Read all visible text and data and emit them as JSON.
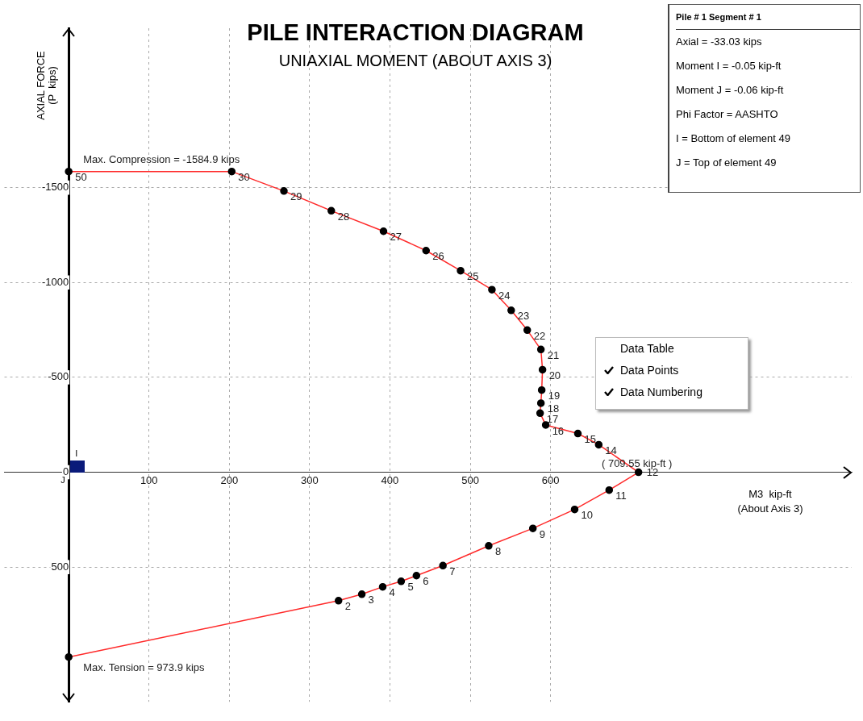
{
  "chart_data": {
    "type": "line",
    "title": "PILE INTERACTION DIAGRAM",
    "subtitle": "UNIAXIAL MOMENT (ABOUT AXIS 3)",
    "xlabel": "M3  kip-ft\n(About Axis 3)",
    "ylabel": "AXIAL FORCE\n(P  kips)",
    "x": [
      0,
      203,
      268,
      327,
      392,
      445,
      488,
      527,
      551,
      571,
      588,
      590,
      589,
      588,
      587,
      594,
      634,
      660,
      709.55,
      673,
      630,
      578,
      523,
      466,
      433,
      414,
      391,
      365,
      336,
      0
    ],
    "series": [
      {
        "color": "#ff2a2a",
        "values": [
          -1584.9,
          -1584.9,
          -1482,
          -1378,
          -1270,
          -1168,
          -1062,
          -962,
          -853,
          -749,
          -647,
          -540,
          -433,
          -364,
          -311,
          -249,
          -204,
          -145,
          0,
          94,
          196,
          296,
          388,
          492,
          545,
          575,
          604,
          643,
          677,
          973.9
        ]
      }
    ],
    "xlim": [
      -80,
      975
    ],
    "ylim": [
      1210,
      -2340
    ],
    "xticks": [
      100,
      200,
      300,
      400,
      500,
      600
    ],
    "yticks": [
      -1500,
      -1000,
      -500,
      0,
      500
    ],
    "grid": true,
    "marker": "circle",
    "line_style": "solid",
    "annotations": [
      "Pile # 1   Segment # 1",
      "Axial = -33.03 kips",
      "Moment I = -0.05 kip-ft",
      "Moment J = -0.06 kip-ft",
      "Phi Factor = AASHTO",
      "I = Bottom of element 49",
      "J = Top of element 49",
      "Data Table",
      "Data Points",
      "Data Numbering",
      "I",
      "J",
      {
        "text": "Max. Compression = -1584.9 kips",
        "x": 0,
        "y": -1584.9
      },
      {
        "text": "( 709.55 kip-ft )",
        "x": 709.55,
        "y": 0
      },
      {
        "text": "Max. Tension = 973.9 kips",
        "x": 0,
        "y": 973.9
      },
      {
        "text": "50",
        "x": 0,
        "y": -1584.9
      },
      {
        "text": "30",
        "x": 203,
        "y": -1584.9
      },
      {
        "text": "29",
        "x": 268,
        "y": -1482
      },
      {
        "text": "28",
        "x": 327,
        "y": -1378
      },
      {
        "text": "27",
        "x": 392,
        "y": -1270
      },
      {
        "text": "26",
        "x": 445,
        "y": -1168
      },
      {
        "text": "25",
        "x": 488,
        "y": -1062
      },
      {
        "text": "24",
        "x": 527,
        "y": -962
      },
      {
        "text": "23",
        "x": 551,
        "y": -853
      },
      {
        "text": "22",
        "x": 571,
        "y": -749
      },
      {
        "text": "21",
        "x": 588,
        "y": -647
      },
      {
        "text": "20",
        "x": 590,
        "y": -540
      },
      {
        "text": "19",
        "x": 589,
        "y": -433
      },
      {
        "text": "18",
        "x": 588,
        "y": -364
      },
      {
        "text": "17",
        "x": 587,
        "y": -311
      },
      {
        "text": "16",
        "x": 594,
        "y": -249
      },
      {
        "text": "15",
        "x": 634,
        "y": -204
      },
      {
        "text": "14",
        "x": 660,
        "y": -145
      },
      {
        "text": "12",
        "x": 709.55,
        "y": 0
      },
      {
        "text": "11",
        "x": 673,
        "y": 94
      },
      {
        "text": "10",
        "x": 630,
        "y": 196
      },
      {
        "text": "9",
        "x": 578,
        "y": 296
      },
      {
        "text": "8",
        "x": 523,
        "y": 388
      },
      {
        "text": "7",
        "x": 466,
        "y": 492
      },
      {
        "text": "6",
        "x": 433,
        "y": 545
      },
      {
        "text": "5",
        "x": 414,
        "y": 575
      },
      {
        "text": "4",
        "x": 391,
        "y": 604
      },
      {
        "text": "3",
        "x": 365,
        "y": 643
      },
      {
        "text": "2",
        "x": 336,
        "y": 677
      }
    ]
  }
}
